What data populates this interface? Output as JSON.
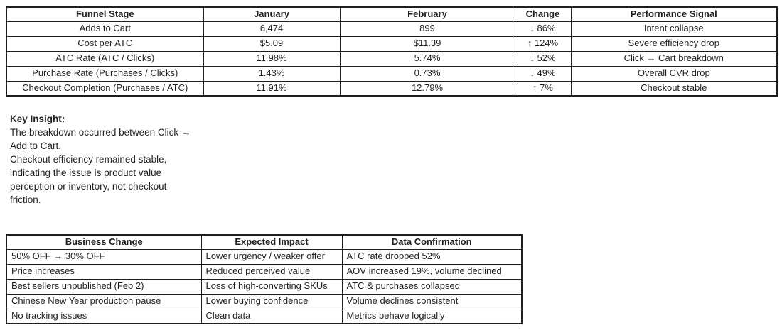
{
  "funnel_table": {
    "headers": [
      "Funnel Stage",
      "January",
      "February",
      "Change",
      "Performance Signal"
    ],
    "rows": [
      [
        "Adds to Cart",
        "6,474",
        "899",
        "↓ 86%",
        "Intent collapse"
      ],
      [
        "Cost per ATC",
        "$5.09",
        "$11.39",
        "↑ 124%",
        "Severe efficiency drop"
      ],
      [
        "ATC Rate (ATC / Clicks)",
        "11.98%",
        "5.74%",
        "↓ 52%",
        "Click → Cart breakdown"
      ],
      [
        "Purchase Rate (Purchases / Clicks)",
        "1.43%",
        "0.73%",
        "↓ 49%",
        "Overall CVR drop"
      ],
      [
        "Checkout Completion (Purchases / ATC)",
        "11.91%",
        "12.79%",
        "↑ 7%",
        "Checkout stable"
      ]
    ]
  },
  "key_insight": {
    "title": "Key Insight:",
    "lines": [
      "The breakdown occurred between Click →",
      "Add to Cart.",
      "Checkout efficiency remained stable,",
      "indicating the issue is product value",
      "perception or inventory, not checkout",
      "friction."
    ]
  },
  "business_table": {
    "headers": [
      "Business Change",
      "Expected Impact",
      "Data Confirmation"
    ],
    "rows": [
      [
        "50% OFF → 30% OFF",
        "Lower urgency / weaker offer",
        "ATC rate dropped 52%"
      ],
      [
        "Price increases",
        "Reduced perceived value",
        "AOV increased 19%, volume declined"
      ],
      [
        "Best sellers unpublished (Feb 2)",
        "Loss of high-converting SKUs",
        "ATC & purchases collapsed"
      ],
      [
        "Chinese New Year production pause",
        "Lower buying confidence",
        "Volume declines consistent"
      ],
      [
        "No tracking issues",
        "Clean data",
        "Metrics behave logically"
      ]
    ]
  },
  "colors": {
    "text": "#1f1f1f",
    "border": "#1f1f1f",
    "background": "#ffffff"
  }
}
